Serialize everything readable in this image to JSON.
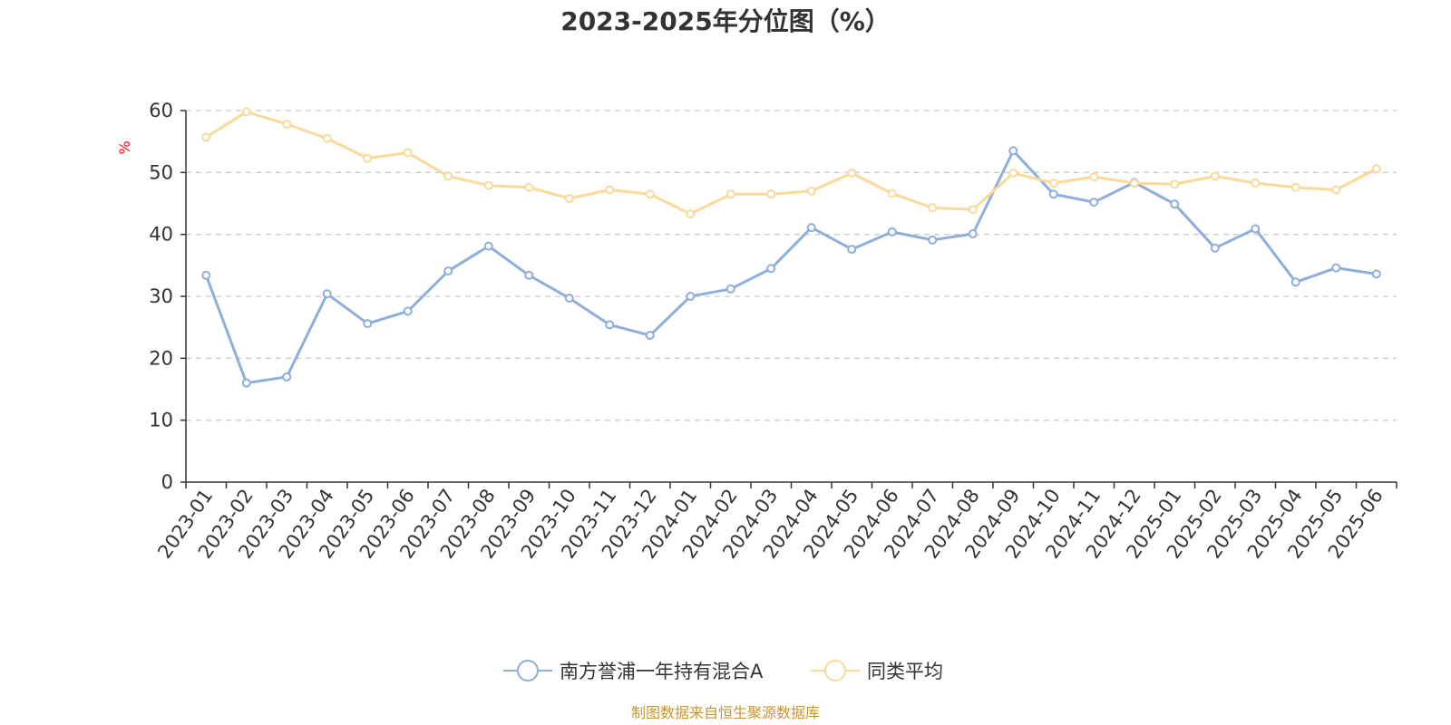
{
  "chart_data": {
    "type": "line",
    "title": "2023-2025年分位图（%）",
    "ylabel": "%",
    "xlabel": "",
    "ylim": [
      0,
      60
    ],
    "yticks": [
      0,
      10,
      20,
      30,
      40,
      50,
      60
    ],
    "grid": true,
    "legend_position": "bottom",
    "categories": [
      "2023-01",
      "2023-02",
      "2023-03",
      "2023-04",
      "2023-05",
      "2023-06",
      "2023-07",
      "2023-08",
      "2023-09",
      "2023-10",
      "2023-11",
      "2023-12",
      "2024-01",
      "2024-02",
      "2024-03",
      "2024-04",
      "2024-05",
      "2024-06",
      "2024-07",
      "2024-08",
      "2024-09",
      "2024-10",
      "2024-11",
      "2024-12",
      "2025-01",
      "2025-02",
      "2025-03",
      "2025-04",
      "2025-05",
      "2025-06"
    ],
    "series": [
      {
        "name": "南方誉浦一年持有混合A",
        "color": "#8eaedb",
        "values": [
          33.4,
          16.0,
          17.0,
          30.4,
          25.6,
          27.6,
          34.1,
          38.1,
          33.4,
          29.7,
          25.4,
          23.7,
          30.0,
          31.2,
          34.5,
          41.1,
          37.6,
          40.4,
          39.1,
          40.1,
          53.5,
          46.5,
          45.2,
          48.4,
          44.9,
          37.8,
          40.9,
          32.3,
          34.6,
          33.6
        ]
      },
      {
        "name": "同类平均",
        "color": "#fad99a",
        "values": [
          55.7,
          59.8,
          57.8,
          55.5,
          52.3,
          53.2,
          49.4,
          47.9,
          47.6,
          45.8,
          47.2,
          46.5,
          43.3,
          46.5,
          46.5,
          47.0,
          49.9,
          46.6,
          44.3,
          44.0,
          49.9,
          48.3,
          49.3,
          48.3,
          48.1,
          49.4,
          48.3,
          47.6,
          47.2,
          50.6
        ]
      }
    ]
  },
  "source_note": "制图数据来自恒生聚源数据库"
}
